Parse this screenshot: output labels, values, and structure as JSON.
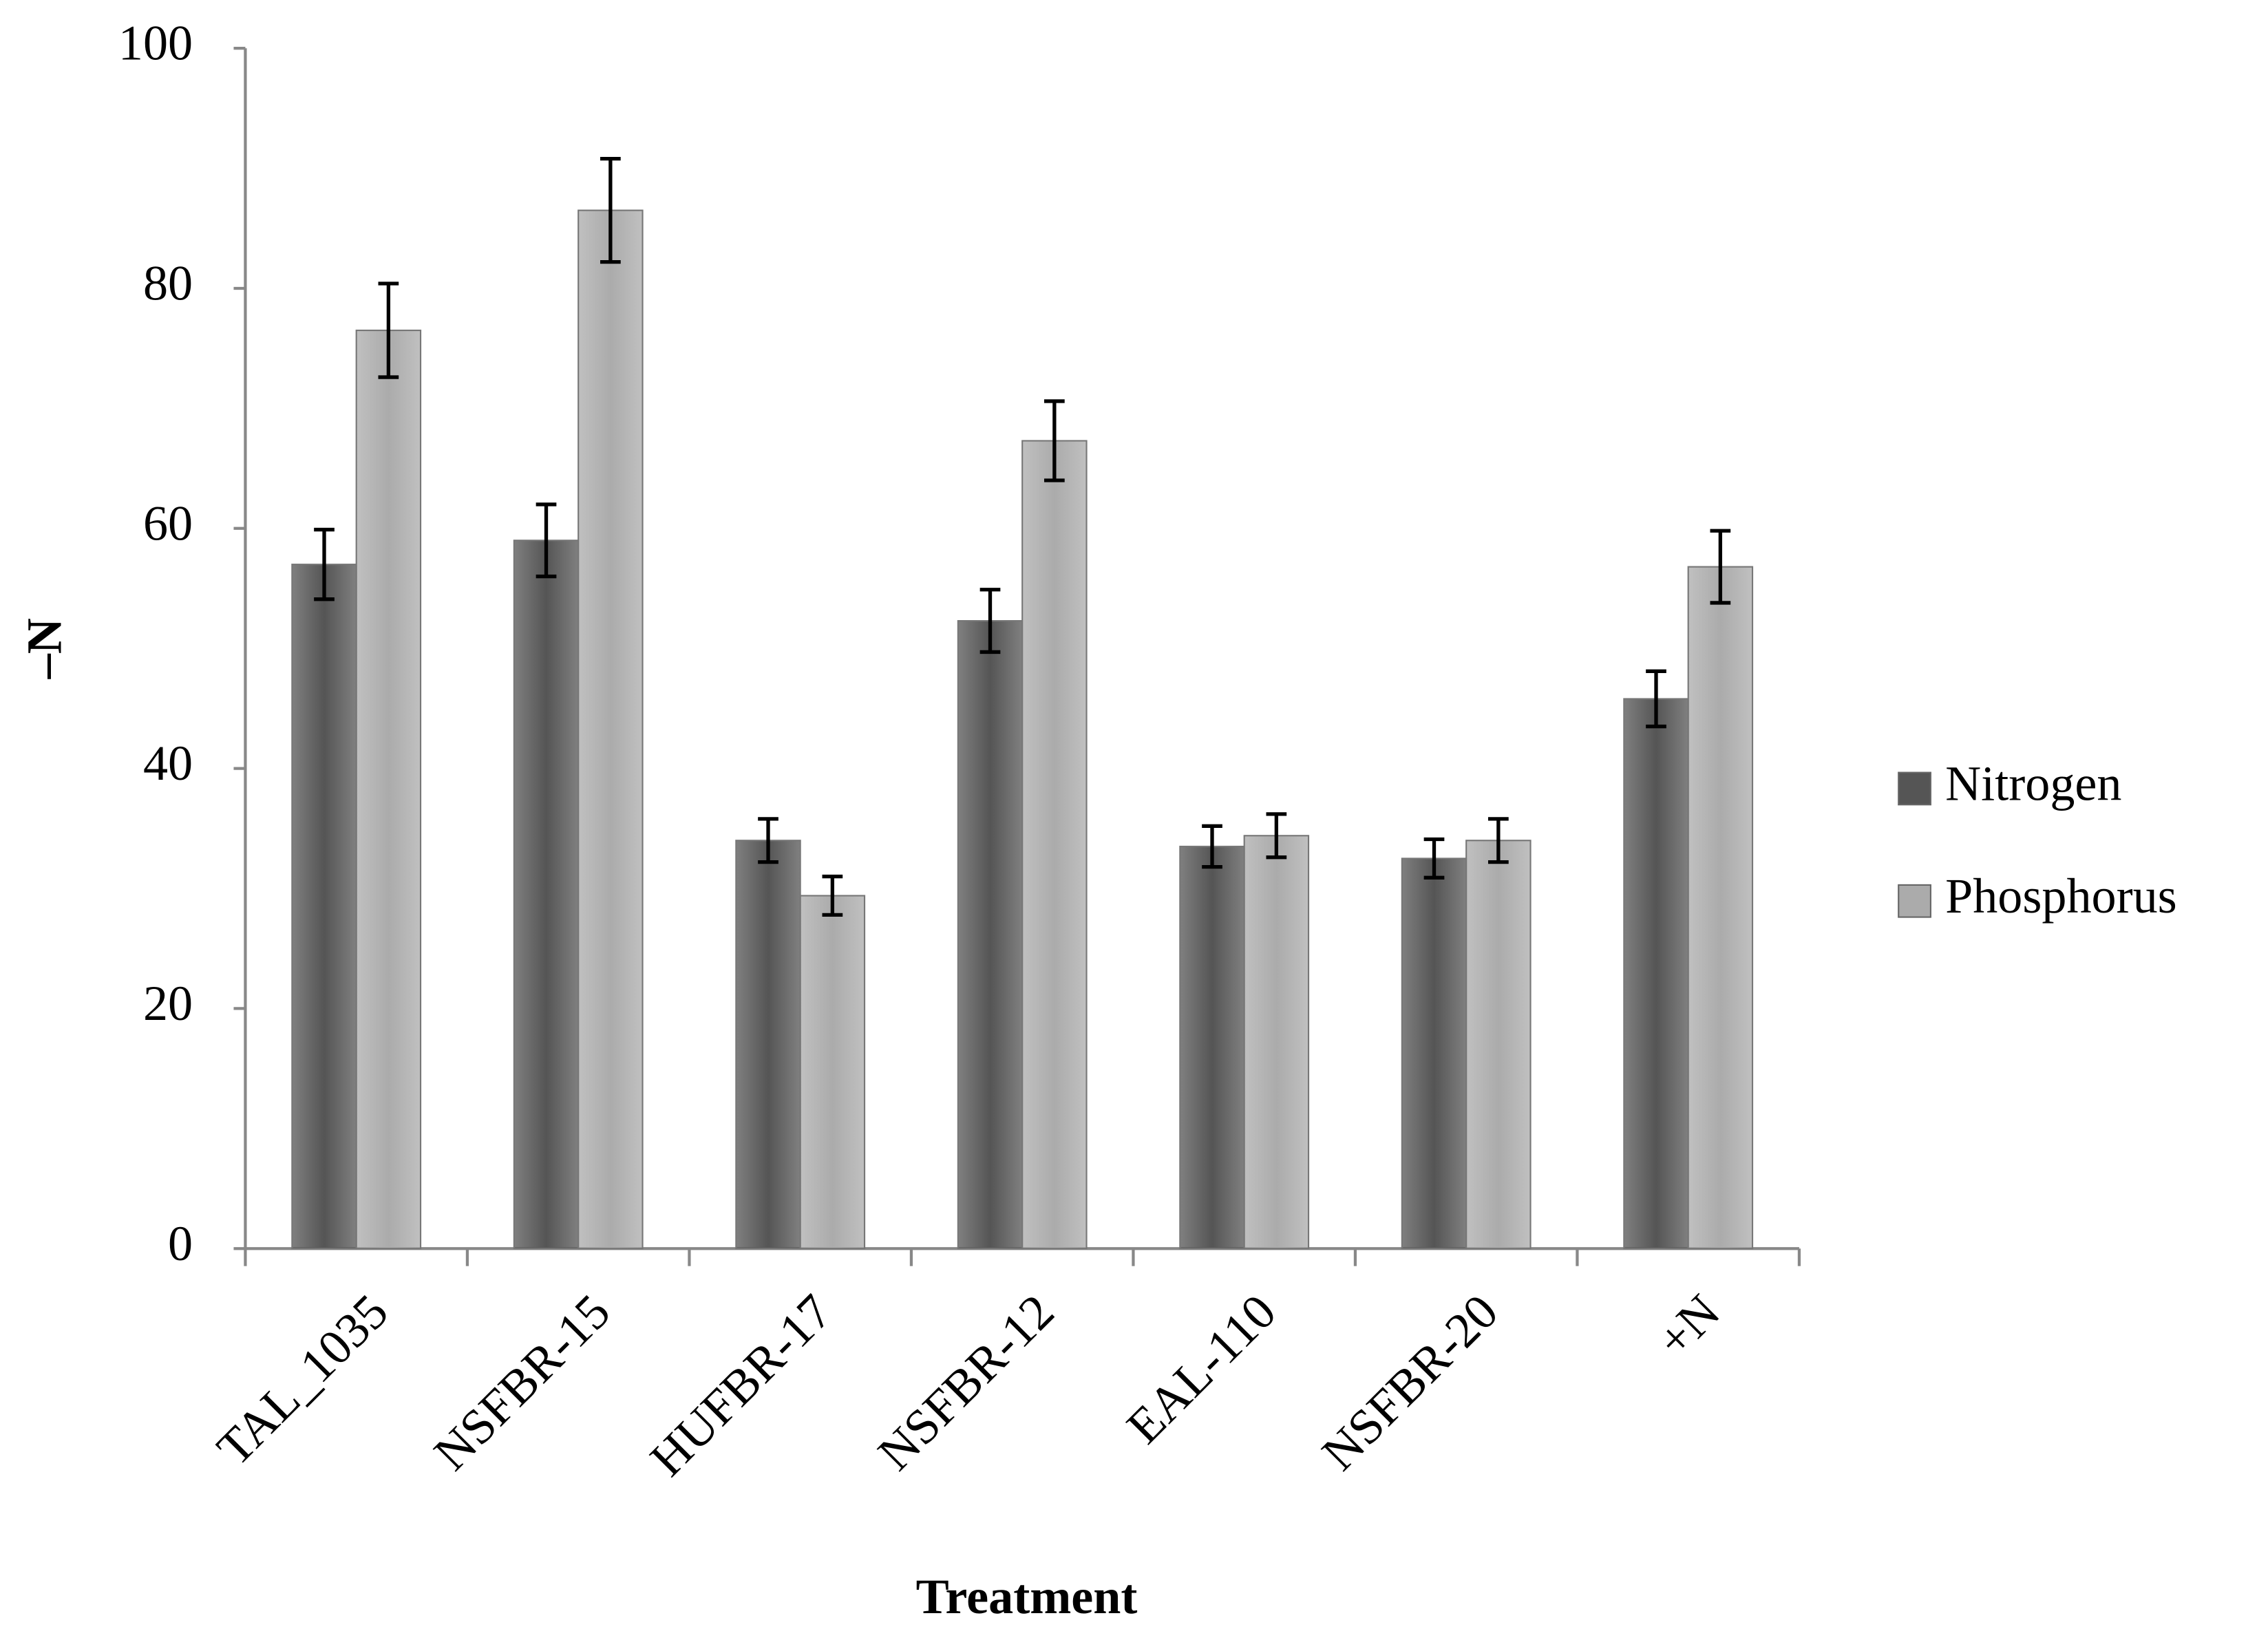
{
  "chart_data": {
    "type": "bar",
    "x_label": "Treatment",
    "y_label": "–N",
    "categories": [
      "TAL_1035",
      "NSFBR-15",
      "HUFBR-17",
      "NSFBR-12",
      "EAL-110",
      "NSFBR-20",
      "+N"
    ],
    "series": [
      {
        "name": "Nitrogen",
        "color": "#555555",
        "values": [
          57,
          59,
          34,
          52.3,
          33.5,
          32.5,
          45.8
        ],
        "errors": [
          2.9,
          3,
          1.8,
          2.6,
          1.7,
          1.6,
          2.3
        ]
      },
      {
        "name": "Phosphorus",
        "color": "#ababab",
        "values": [
          76.5,
          86.5,
          29.4,
          67.3,
          34.4,
          34,
          56.8
        ],
        "errors": [
          3.9,
          4.3,
          1.6,
          3.3,
          1.8,
          1.8,
          3
        ]
      }
    ],
    "ylim": [
      0,
      100
    ],
    "yticks": [
      0,
      20,
      40,
      60,
      80,
      100
    ],
    "grid": false,
    "legend": "right"
  }
}
